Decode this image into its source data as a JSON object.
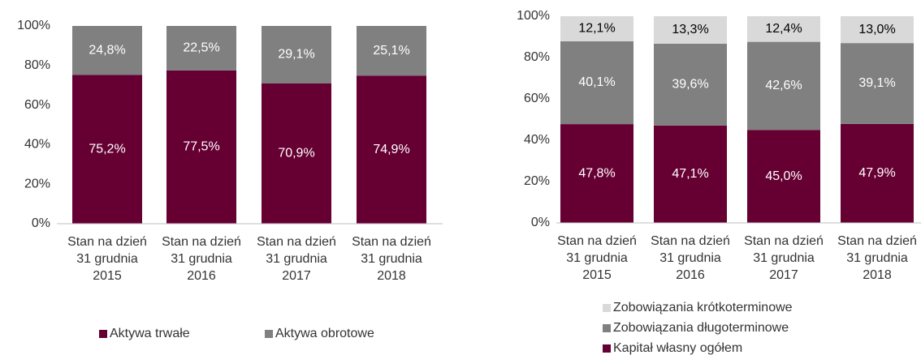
{
  "chart_data": [
    {
      "type": "stacked_bar",
      "categories": [
        "Stan na dzień\n31 grudnia\n2015",
        "Stan na dzień\n31 grudnia\n2016",
        "Stan na dzień\n31 grudnia\n2017",
        "Stan na dzień\n31 grudnia\n2018"
      ],
      "series": [
        {
          "name": "Aktywa trwałe",
          "color": "#660033",
          "values": [
            75.2,
            77.5,
            70.9,
            74.9
          ],
          "value_labels": [
            "75,2%",
            "77,5%",
            "70,9%",
            "74,9%"
          ]
        },
        {
          "name": "Aktywa obrotowe",
          "color": "#808080",
          "values": [
            24.8,
            22.5,
            29.1,
            25.1
          ],
          "value_labels": [
            "24,8%",
            "22,5%",
            "29,1%",
            "25,1%"
          ]
        }
      ],
      "ylim": [
        0,
        100
      ],
      "yticks": [
        {
          "value": 0,
          "label": "0%"
        },
        {
          "value": 20,
          "label": "20%"
        },
        {
          "value": 40,
          "label": "40%"
        },
        {
          "value": 60,
          "label": "60%"
        },
        {
          "value": 80,
          "label": "80%"
        },
        {
          "value": 100,
          "label": "100%"
        }
      ],
      "legend": "bottom"
    },
    {
      "type": "stacked_bar",
      "categories": [
        "Stan na dzień\n31 grudnia\n2015",
        "Stan na dzień\n31 grudnia\n2016",
        "Stan na dzień\n31 grudnia\n2017",
        "Stan na dzień\n31 grudnia\n2018"
      ],
      "series": [
        {
          "name": "Kapitał własny ogółem",
          "color": "#660033",
          "values": [
            47.8,
            47.1,
            45.0,
            47.9
          ],
          "value_labels": [
            "47,8%",
            "47,1%",
            "45,0%",
            "47,9%"
          ]
        },
        {
          "name": "Zobowiązania długoterminowe",
          "color": "#808080",
          "values": [
            40.1,
            39.6,
            42.6,
            39.1
          ],
          "value_labels": [
            "40,1%",
            "39,6%",
            "42,6%",
            "39,1%"
          ]
        },
        {
          "name": "Zobowiązania krótkoterminowe",
          "color": "#d9d9d9",
          "values": [
            12.1,
            13.3,
            12.4,
            13.0
          ],
          "value_labels": [
            "12,1%",
            "13,3%",
            "12,4%",
            "13,0%"
          ]
        }
      ],
      "ylim": [
        0,
        100
      ],
      "yticks": [
        {
          "value": 0,
          "label": "0%"
        },
        {
          "value": 20,
          "label": "20%"
        },
        {
          "value": 40,
          "label": "40%"
        },
        {
          "value": 60,
          "label": "60%"
        },
        {
          "value": 80,
          "label": "80%"
        },
        {
          "value": 100,
          "label": "100%"
        }
      ],
      "legend": "bottom"
    }
  ]
}
